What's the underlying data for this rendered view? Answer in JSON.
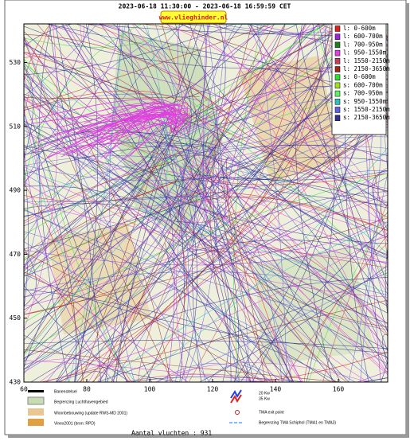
{
  "header": {
    "title": "2023-06-18 11:30:00 - 2023-06-18 16:59:59 CET",
    "link": "www.vlieghinder.nl"
  },
  "axes": {
    "yticks": [
      530,
      510,
      490,
      470,
      450,
      430
    ],
    "xticks": [
      60,
      80,
      100,
      120,
      140,
      160
    ]
  },
  "legend": [
    {
      "label": "l: 0-600m",
      "color": "#e02020"
    },
    {
      "label": "l: 600-700m",
      "color": "#a020e0"
    },
    {
      "label": "l: 700-950m",
      "color": "#208020"
    },
    {
      "label": "l: 950-1550m",
      "color": "#e040e0"
    },
    {
      "label": "l: 1550-2150m",
      "color": "#c04060"
    },
    {
      "label": "l: 2150-3650m",
      "color": "#a02818"
    },
    {
      "label": "s: 0-600m",
      "color": "#30e030"
    },
    {
      "label": "s: 600-700m",
      "color": "#a0e020"
    },
    {
      "label": "s: 700-950m",
      "color": "#60f060"
    },
    {
      "label": "s: 950-1550m",
      "color": "#30c0c0"
    },
    {
      "label": "s: 1550-2150m",
      "color": "#6060e0"
    },
    {
      "label": "s: 2150-3650m",
      "color": "#303090"
    }
  ],
  "map_legend": {
    "left": [
      "Banenstelsel",
      "Begrenzing Luchthavengebied",
      "Woonbebouwing (update RWS-MD 2001)",
      "Vinex2001 (bron: RPD)"
    ],
    "right": [
      "20 Kw",
      "35 Kw",
      "TMA exit point",
      "Begrenzing TMA Schiphol  (TMA1 en TMA3)"
    ]
  },
  "footer": "Aantal vluchten : 931"
}
